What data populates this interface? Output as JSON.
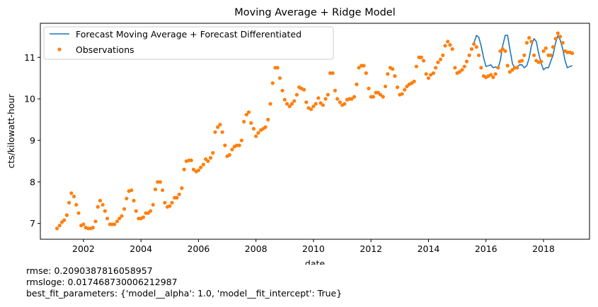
{
  "chart_data": {
    "type": "line",
    "title": "Moving Average + Ridge Model",
    "xlabel": "date",
    "ylabel": "cts/kilowatt-hour",
    "xlim": [
      2000.5,
      2019.6
    ],
    "ylim": [
      6.62,
      11.82
    ],
    "x_ticks": [
      2002,
      2004,
      2006,
      2008,
      2010,
      2012,
      2014,
      2016,
      2018
    ],
    "x_tick_labels": [
      "2002",
      "2004",
      "2006",
      "2008",
      "2010",
      "2012",
      "2014",
      "2016",
      "2018"
    ],
    "y_ticks": [
      7,
      8,
      9,
      10,
      11
    ],
    "y_tick_labels": [
      "7",
      "8",
      "9",
      "10",
      "11"
    ],
    "grid": false,
    "legend": "upper-left",
    "series": [
      {
        "name": "Forecast Moving Average + Forecast Differentiated",
        "kind": "line",
        "color": "#1f77b4",
        "x": [
          2015.58,
          2015.67,
          2015.75,
          2015.83,
          2015.92,
          2016.0,
          2016.08,
          2016.17,
          2016.25,
          2016.33,
          2016.42,
          2016.5,
          2016.58,
          2016.67,
          2016.75,
          2016.83,
          2016.92,
          2017.0,
          2017.08,
          2017.17,
          2017.25,
          2017.33,
          2017.42,
          2017.5,
          2017.58,
          2017.67,
          2017.75,
          2017.83,
          2017.92,
          2018.0,
          2018.08,
          2018.17,
          2018.25,
          2018.33,
          2018.42,
          2018.5,
          2018.58,
          2018.67,
          2018.75,
          2018.83,
          2018.92,
          2019.0
        ],
        "y": [
          11.35,
          11.53,
          11.48,
          11.28,
          10.98,
          10.78,
          10.8,
          10.82,
          10.75,
          10.77,
          10.74,
          10.93,
          11.28,
          11.53,
          11.53,
          11.2,
          10.85,
          10.73,
          10.77,
          10.82,
          10.82,
          10.75,
          10.8,
          10.98,
          11.28,
          11.45,
          11.38,
          11.1,
          10.85,
          10.7,
          10.75,
          10.75,
          10.9,
          11.05,
          11.35,
          11.52,
          11.42,
          11.2,
          10.92,
          10.75,
          10.78,
          10.8
        ]
      },
      {
        "name": "Observations",
        "kind": "scatter",
        "color": "#ff7f0e",
        "x": [
          2001.08,
          2001.17,
          2001.25,
          2001.33,
          2001.42,
          2001.5,
          2001.58,
          2001.67,
          2001.75,
          2001.83,
          2001.92,
          2002.0,
          2002.08,
          2002.17,
          2002.25,
          2002.33,
          2002.42,
          2002.5,
          2002.58,
          2002.67,
          2002.75,
          2002.83,
          2002.92,
          2003.0,
          2003.08,
          2003.17,
          2003.25,
          2003.33,
          2003.42,
          2003.5,
          2003.58,
          2003.67,
          2003.75,
          2003.83,
          2003.92,
          2004.0,
          2004.08,
          2004.17,
          2004.25,
          2004.33,
          2004.42,
          2004.5,
          2004.58,
          2004.67,
          2004.75,
          2004.83,
          2004.92,
          2005.0,
          2005.08,
          2005.17,
          2005.25,
          2005.33,
          2005.42,
          2005.5,
          2005.58,
          2005.67,
          2005.75,
          2005.83,
          2005.92,
          2006.0,
          2006.08,
          2006.17,
          2006.25,
          2006.33,
          2006.42,
          2006.5,
          2006.58,
          2006.67,
          2006.75,
          2006.83,
          2006.92,
          2007.0,
          2007.08,
          2007.17,
          2007.25,
          2007.33,
          2007.42,
          2007.5,
          2007.58,
          2007.67,
          2007.75,
          2007.83,
          2007.92,
          2008.0,
          2008.08,
          2008.17,
          2008.25,
          2008.33,
          2008.42,
          2008.5,
          2008.58,
          2008.67,
          2008.75,
          2008.83,
          2008.92,
          2009.0,
          2009.08,
          2009.17,
          2009.25,
          2009.33,
          2009.42,
          2009.5,
          2009.58,
          2009.67,
          2009.75,
          2009.83,
          2009.92,
          2010.0,
          2010.08,
          2010.17,
          2010.25,
          2010.33,
          2010.42,
          2010.5,
          2010.58,
          2010.67,
          2010.75,
          2010.83,
          2010.92,
          2011.0,
          2011.08,
          2011.17,
          2011.25,
          2011.33,
          2011.42,
          2011.5,
          2011.58,
          2011.67,
          2011.75,
          2011.83,
          2011.92,
          2012.0,
          2012.08,
          2012.17,
          2012.25,
          2012.33,
          2012.42,
          2012.5,
          2012.58,
          2012.67,
          2012.75,
          2012.83,
          2012.92,
          2013.0,
          2013.08,
          2013.17,
          2013.25,
          2013.33,
          2013.42,
          2013.5,
          2013.58,
          2013.67,
          2013.75,
          2013.83,
          2013.92,
          2014.0,
          2014.08,
          2014.17,
          2014.25,
          2014.33,
          2014.42,
          2014.5,
          2014.58,
          2014.67,
          2014.75,
          2014.83,
          2014.92,
          2015.0,
          2015.08,
          2015.17,
          2015.25,
          2015.33,
          2015.42,
          2015.5,
          2015.58,
          2015.67,
          2015.75,
          2015.83,
          2015.92,
          2016.0,
          2016.08,
          2016.17,
          2016.25,
          2016.33,
          2016.42,
          2016.5,
          2016.58,
          2016.67,
          2016.75,
          2016.83,
          2016.92,
          2017.0,
          2017.08,
          2017.17,
          2017.25,
          2017.33,
          2017.42,
          2017.5,
          2017.58,
          2017.67,
          2017.75,
          2017.83,
          2017.92,
          2018.0,
          2018.08,
          2018.17,
          2018.25,
          2018.33,
          2018.42,
          2018.5,
          2018.58,
          2018.67,
          2018.75,
          2018.83,
          2018.92,
          2019.0
        ],
        "y": [
          6.88,
          6.95,
          7.03,
          7.08,
          7.2,
          7.5,
          7.73,
          7.65,
          7.45,
          7.25,
          6.95,
          6.98,
          6.9,
          6.88,
          6.88,
          6.9,
          7.05,
          7.4,
          7.55,
          7.45,
          7.3,
          7.12,
          6.98,
          6.98,
          6.98,
          7.05,
          7.12,
          7.18,
          7.35,
          7.6,
          7.78,
          7.8,
          7.55,
          7.3,
          7.12,
          7.12,
          7.15,
          7.25,
          7.25,
          7.3,
          7.45,
          7.82,
          8.0,
          8.0,
          7.8,
          7.5,
          7.4,
          7.42,
          7.5,
          7.62,
          7.62,
          7.7,
          7.85,
          8.3,
          8.5,
          8.52,
          8.52,
          8.3,
          8.25,
          8.28,
          8.35,
          8.42,
          8.55,
          8.5,
          8.58,
          8.7,
          9.2,
          9.32,
          9.38,
          9.2,
          8.88,
          8.62,
          8.65,
          8.78,
          8.85,
          8.88,
          8.88,
          9.0,
          9.45,
          9.62,
          9.68,
          9.42,
          9.28,
          9.1,
          9.18,
          9.25,
          9.28,
          9.32,
          9.5,
          9.88,
          10.38,
          10.75,
          10.75,
          10.5,
          10.2,
          9.98,
          9.88,
          9.82,
          9.88,
          9.95,
          10.1,
          10.28,
          10.25,
          10.22,
          9.92,
          9.78,
          9.75,
          9.82,
          9.88,
          10.02,
          9.9,
          9.85,
          10.0,
          10.1,
          10.62,
          10.62,
          10.2,
          10.0,
          9.92,
          9.85,
          9.88,
          9.98,
          10.0,
          10.0,
          10.05,
          10.35,
          10.75,
          10.8,
          10.8,
          10.62,
          10.25,
          10.05,
          10.05,
          10.15,
          10.15,
          10.1,
          10.05,
          10.3,
          10.6,
          10.75,
          10.72,
          10.55,
          10.28,
          10.1,
          10.12,
          10.22,
          10.3,
          10.35,
          10.38,
          10.42,
          10.78,
          11.0,
          11.0,
          10.92,
          10.6,
          10.5,
          10.58,
          10.62,
          10.75,
          10.88,
          10.95,
          11.05,
          11.28,
          11.38,
          11.3,
          11.2,
          10.75,
          10.62,
          10.65,
          10.7,
          10.78,
          10.9,
          11.05,
          11.2,
          11.32,
          11.25,
          11.05,
          10.75,
          10.55,
          10.52,
          10.55,
          10.58,
          10.52,
          10.6,
          10.75,
          11.15,
          11.2,
          11.15,
          10.8,
          10.65,
          10.7,
          10.75,
          10.75,
          10.9,
          10.92,
          11.05,
          11.35,
          11.47,
          11.38,
          11.05,
          10.92,
          10.88,
          10.9,
          11.15,
          11.22,
          11.05,
          11.05,
          11.25,
          11.45,
          11.58,
          11.5,
          11.35,
          11.15,
          11.12,
          11.12,
          11.1
        ]
      }
    ]
  },
  "notes": {
    "rmse": "rmse: 0.2090387816058957",
    "rmsloge": "rmsloge: 0.017468730006212987",
    "best_fit": "best_fit_parameters: {'model__alpha': 1.0, 'model__fit_intercept': True}"
  }
}
